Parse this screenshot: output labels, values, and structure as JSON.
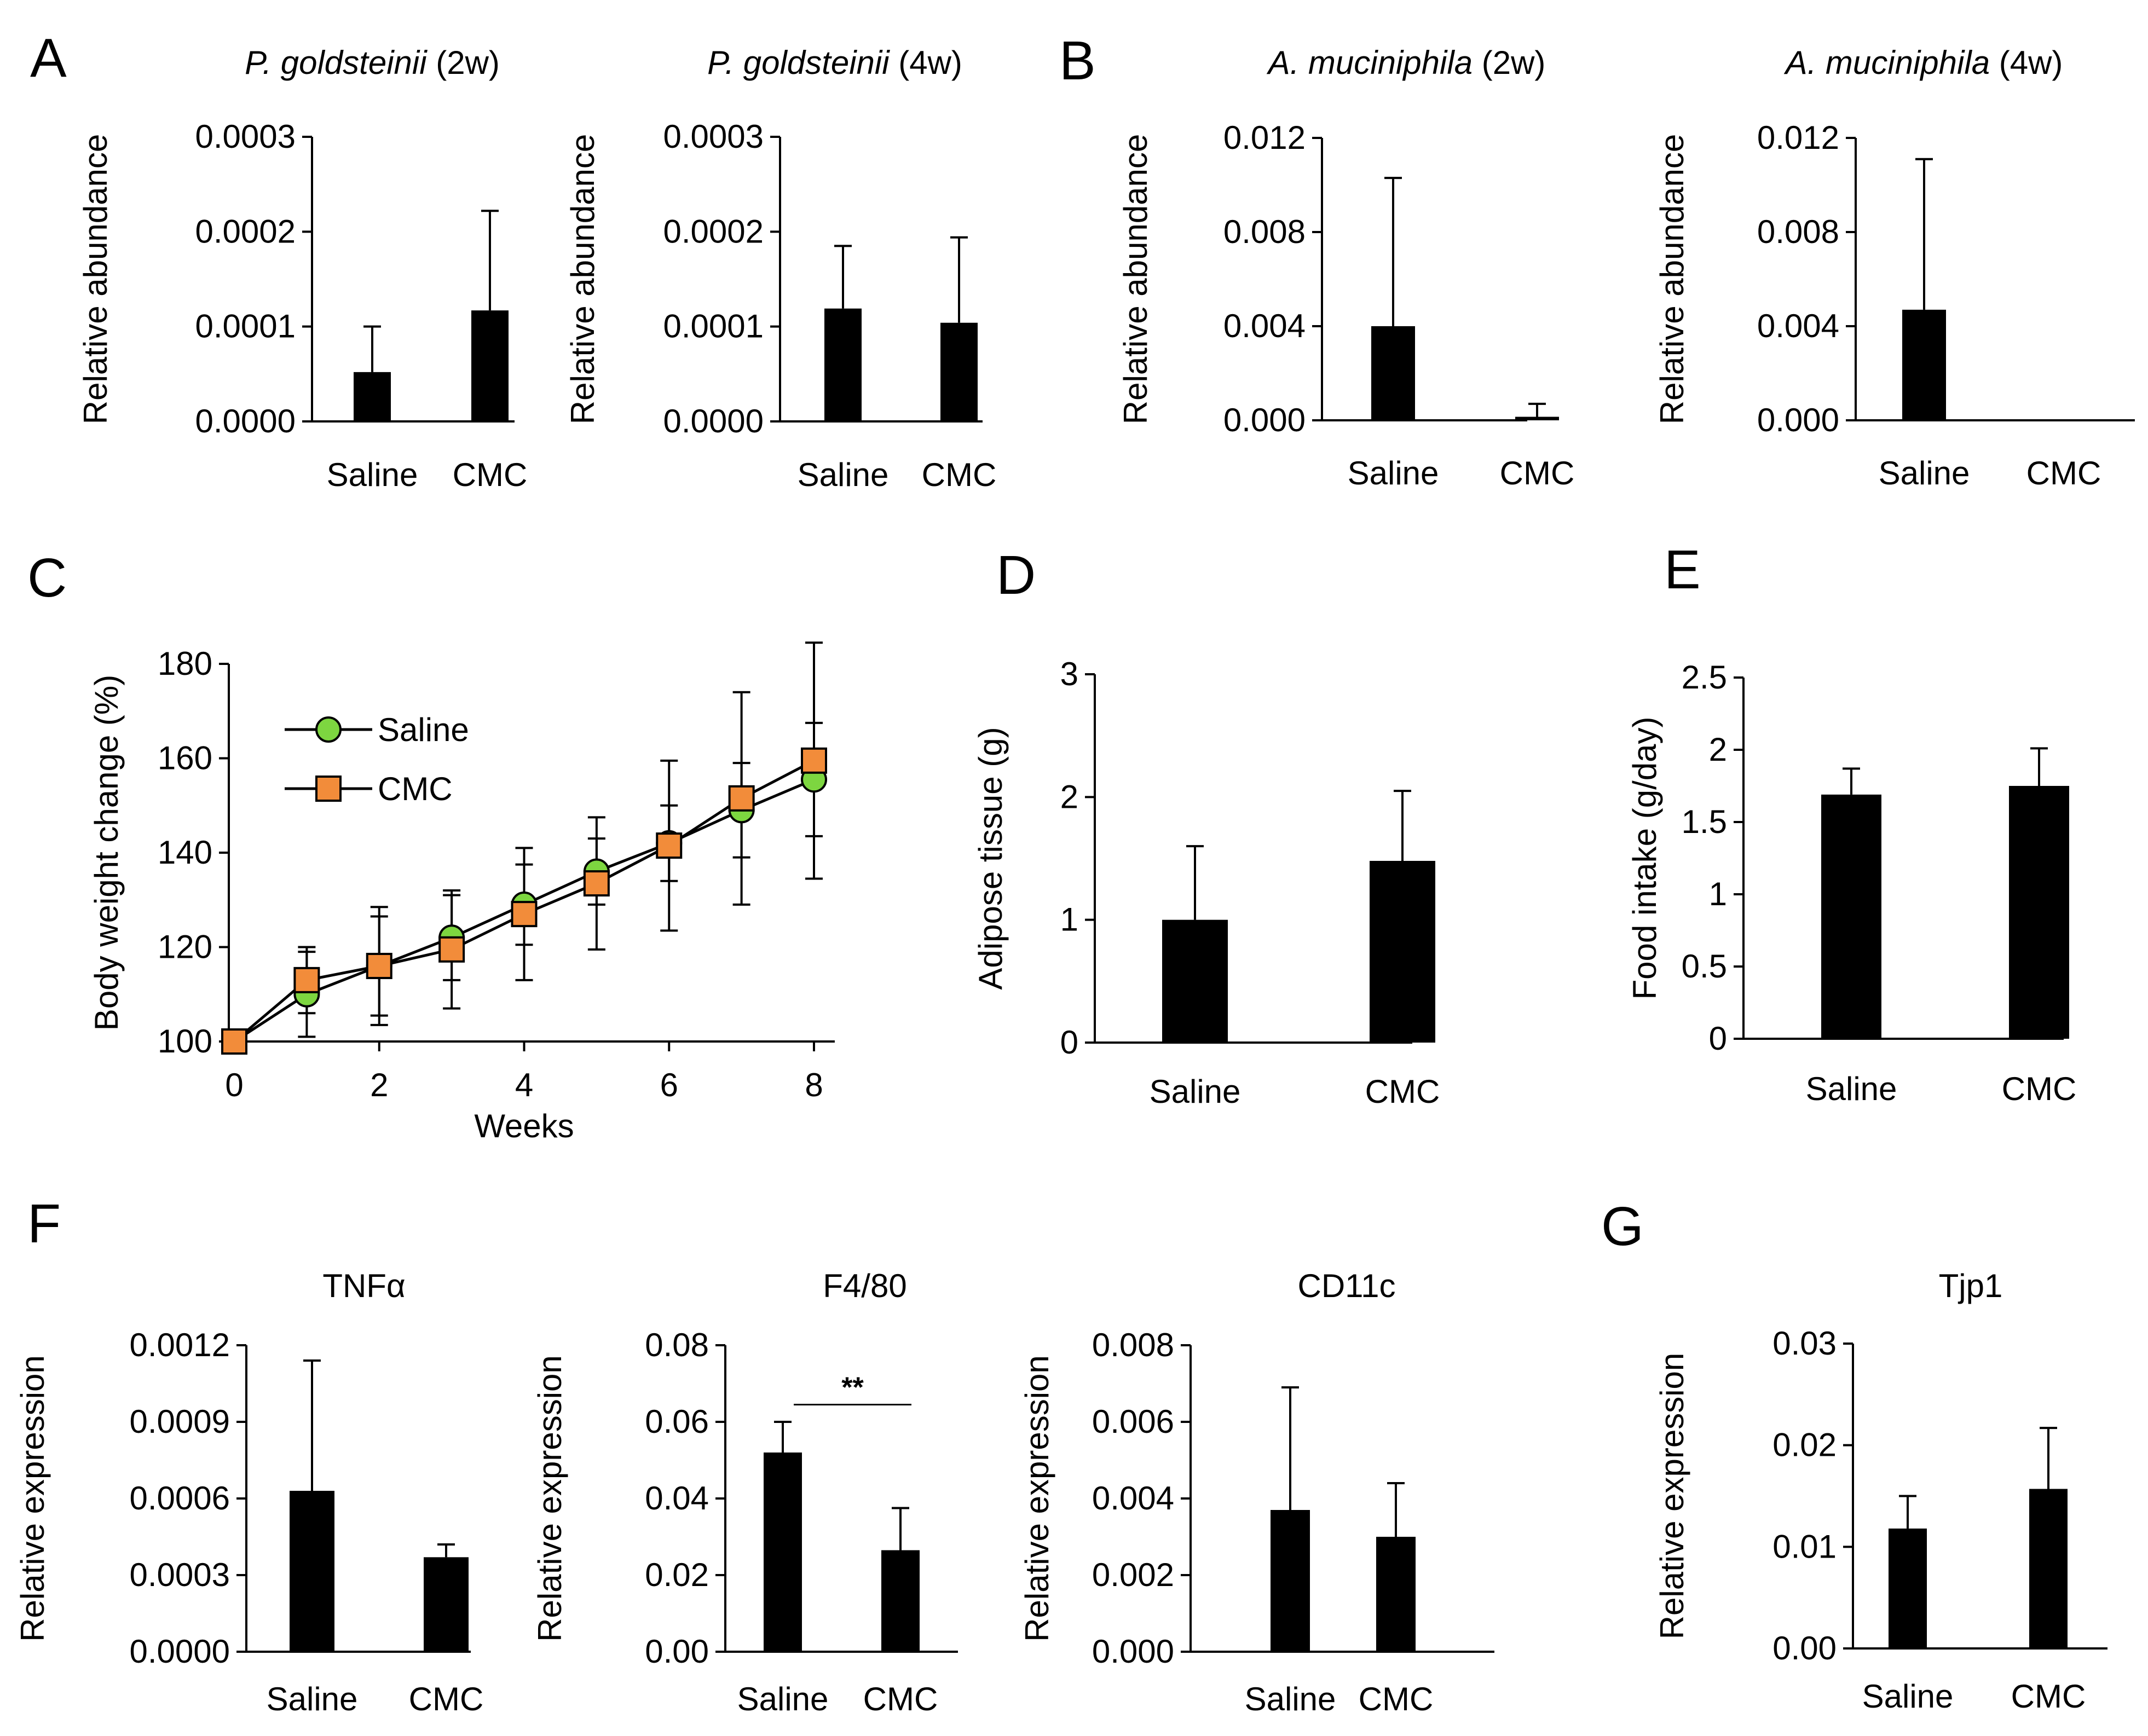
{
  "panel_letters": [
    "A",
    "B",
    "C",
    "D",
    "E",
    "F",
    "G"
  ],
  "chart_data": [
    {
      "id": "A1",
      "panel": "A",
      "type": "bar",
      "title": [
        {
          "text": "P. goldsteinii",
          "italic": true
        },
        {
          "text": " (2w)",
          "italic": false
        }
      ],
      "categories": [
        "Saline",
        "CMC"
      ],
      "values": [
        5.2e-05,
        0.000117
      ],
      "errors": [
        4.8e-05,
        0.000105
      ],
      "ylabel": "Relative abundance",
      "ylim": [
        0,
        0.0003
      ],
      "yticks": [
        "0.0000",
        "0.0001",
        "0.0002",
        "0.0003"
      ]
    },
    {
      "id": "A2",
      "panel": "A",
      "type": "bar",
      "title": [
        {
          "text": "P. goldsteinii",
          "italic": true
        },
        {
          "text": " (4w)",
          "italic": false
        }
      ],
      "categories": [
        "Saline",
        "CMC"
      ],
      "values": [
        0.000119,
        0.000104
      ],
      "errors": [
        6.6e-05,
        9e-05
      ],
      "ylabel": "Relative abundance",
      "ylim": [
        0,
        0.0003
      ],
      "yticks": [
        "0.0000",
        "0.0001",
        "0.0002",
        "0.0003"
      ]
    },
    {
      "id": "B1",
      "panel": "B",
      "type": "bar",
      "title": [
        {
          "text": "A. muciniphila",
          "italic": true
        },
        {
          "text": " (2w)",
          "italic": false
        }
      ],
      "categories": [
        "Saline",
        "CMC"
      ],
      "values": [
        0.004,
        0.00015
      ],
      "errors": [
        0.0063,
        0.00055
      ],
      "ylabel": "Relative abundance",
      "ylim": [
        0,
        0.012
      ],
      "yticks": [
        "0.000",
        "0.004",
        "0.008",
        "0.012"
      ]
    },
    {
      "id": "B2",
      "panel": "B",
      "type": "bar",
      "title": [
        {
          "text": "A. muciniphila",
          "italic": true
        },
        {
          "text": " (4w)",
          "italic": false
        }
      ],
      "categories": [
        "Saline",
        "CMC"
      ],
      "values": [
        0.0047,
        2e-05
      ],
      "errors": [
        0.0064,
        0
      ],
      "ylabel": "Relative abundance",
      "ylim": [
        0,
        0.012
      ],
      "yticks": [
        "0.000",
        "0.004",
        "0.008",
        "0.012"
      ]
    },
    {
      "id": "C",
      "panel": "C",
      "type": "line",
      "xlabel": "Weeks",
      "ylabel": "Body weight change (%)",
      "xlim": [
        0,
        8
      ],
      "ylim": [
        100,
        180
      ],
      "xticks": [
        "0",
        "2",
        "4",
        "6",
        "8"
      ],
      "yticks": [
        "100",
        "120",
        "140",
        "160",
        "180"
      ],
      "x": [
        0,
        1,
        2,
        3,
        4,
        5,
        6,
        7,
        8
      ],
      "legend_position": "top-left",
      "series": [
        {
          "name": "Saline",
          "color": "#7DD640",
          "marker": "circle",
          "values": [
            100,
            110,
            116,
            122,
            129,
            136,
            142,
            149,
            155.5
          ],
          "errors": [
            0,
            9,
            12.5,
            9,
            8.5,
            7,
            8,
            10,
            12
          ]
        },
        {
          "name": "CMC",
          "color": "#F28C3A",
          "marker": "square",
          "values": [
            100,
            113,
            116,
            119.5,
            127,
            133.5,
            141.5,
            151.5,
            159.5
          ],
          "errors": [
            0,
            7,
            10.5,
            12.5,
            14,
            14,
            18,
            22.5,
            25
          ]
        }
      ]
    },
    {
      "id": "D",
      "panel": "D",
      "type": "bar",
      "categories": [
        "Saline",
        "CMC"
      ],
      "values": [
        1.0,
        1.48
      ],
      "errors": [
        0.6,
        0.57
      ],
      "ylabel": "Adipose tissue (g)",
      "ylim": [
        0,
        3
      ],
      "yticks": [
        "0",
        "1",
        "2",
        "3"
      ]
    },
    {
      "id": "E",
      "panel": "E",
      "type": "bar",
      "categories": [
        "Saline",
        "CMC"
      ],
      "values": [
        1.69,
        1.75
      ],
      "errors": [
        0.18,
        0.26
      ],
      "ylabel": "Food intake (g/day)",
      "ylim": [
        0,
        2.5
      ],
      "yticks": [
        "0",
        "0.5",
        "1",
        "1.5",
        "2",
        "2.5"
      ]
    },
    {
      "id": "F1",
      "panel": "F",
      "type": "bar",
      "title": [
        {
          "text": "TNFα",
          "italic": false
        }
      ],
      "categories": [
        "Saline",
        "CMC"
      ],
      "values": [
        0.00063,
        0.00037
      ],
      "errors": [
        0.00051,
        5e-05
      ],
      "ylabel": "Relative expression",
      "ylim": [
        0,
        0.0012
      ],
      "yticks": [
        "0.0000",
        "0.0003",
        "0.0006",
        "0.0009",
        "0.0012"
      ]
    },
    {
      "id": "F2",
      "panel": "F",
      "type": "bar",
      "title": [
        {
          "text": "F4/80",
          "italic": false
        }
      ],
      "categories": [
        "Saline",
        "CMC"
      ],
      "values": [
        0.052,
        0.0265
      ],
      "errors": [
        0.008,
        0.011
      ],
      "ylabel": "Relative expression",
      "ylim": [
        0,
        0.08
      ],
      "yticks": [
        "0.00",
        "0.02",
        "0.04",
        "0.06",
        "0.08"
      ],
      "significance": {
        "label": "**",
        "y": 0.0645
      }
    },
    {
      "id": "F3",
      "panel": "F",
      "type": "bar",
      "title": [
        {
          "text": "CD11c",
          "italic": false
        }
      ],
      "categories": [
        "Saline",
        "CMC"
      ],
      "values": [
        0.0037,
        0.003
      ],
      "errors": [
        0.0032,
        0.0014
      ],
      "ylabel": "Relative expression",
      "ylim": [
        0,
        0.008
      ],
      "yticks": [
        "0.000",
        "0.002",
        "0.004",
        "0.006",
        "0.008"
      ]
    },
    {
      "id": "G",
      "panel": "G",
      "type": "bar",
      "title": [
        {
          "text": "Tjp1",
          "italic": false
        }
      ],
      "categories": [
        "Saline",
        "CMC"
      ],
      "values": [
        0.0118,
        0.0157
      ],
      "errors": [
        0.0032,
        0.006
      ],
      "ylabel": "Relative expression",
      "ylim": [
        0,
        0.03
      ],
      "yticks": [
        "0.00",
        "0.01",
        "0.02",
        "0.03"
      ]
    }
  ]
}
